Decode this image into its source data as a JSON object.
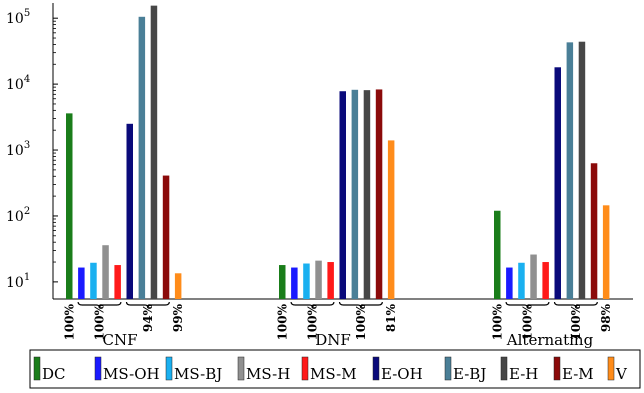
{
  "chart_data": {
    "type": "bar",
    "scale": "log",
    "ylim": [
      5.5,
      170000
    ],
    "yticks": [
      {
        "value": 10,
        "base": "10",
        "exp": "1"
      },
      {
        "value": 100,
        "base": "10",
        "exp": "2"
      },
      {
        "value": 1000,
        "base": "10",
        "exp": "3"
      },
      {
        "value": 10000,
        "base": "10",
        "exp": "4"
      },
      {
        "value": 100000,
        "base": "10",
        "exp": "5"
      }
    ],
    "categories": [
      "CNF",
      "DNF",
      "Alternating"
    ],
    "series": [
      {
        "name": "DC",
        "color": "#1a7d1a",
        "values": [
          3600,
          18,
          120
        ]
      },
      {
        "name": "MS-OH",
        "color": "#1a1aff",
        "values": [
          16.5,
          16.5,
          16.5
        ]
      },
      {
        "name": "MS-BJ",
        "color": "#1ab0f0",
        "values": [
          19.5,
          19,
          19.5
        ]
      },
      {
        "name": "MS-H",
        "color": "#909090",
        "values": [
          36,
          21,
          26
        ]
      },
      {
        "name": "MS-M",
        "color": "#ff1a1a",
        "values": [
          18,
          20,
          20
        ]
      },
      {
        "name": "E-OH",
        "color": "#0a0a7a",
        "values": [
          2500,
          7800,
          18000
        ]
      },
      {
        "name": "E-BJ",
        "color": "#4a7f97",
        "values": [
          105000,
          8200,
          43000
        ]
      },
      {
        "name": "E-H",
        "color": "#474747",
        "values": [
          155000,
          8100,
          44000
        ]
      },
      {
        "name": "E-M",
        "color": "#8b0a0a",
        "values": [
          410,
          8300,
          630
        ]
      },
      {
        "name": "V",
        "color": "#ff8c1a",
        "values": [
          13.5,
          1400,
          145
        ]
      }
    ],
    "percent_labels": [
      [
        "100%",
        "100%",
        "94%",
        "99%"
      ],
      [
        "100%",
        "100%",
        "100%",
        "81%"
      ],
      [
        "100%",
        "100%",
        "100%",
        "98%"
      ]
    ]
  }
}
